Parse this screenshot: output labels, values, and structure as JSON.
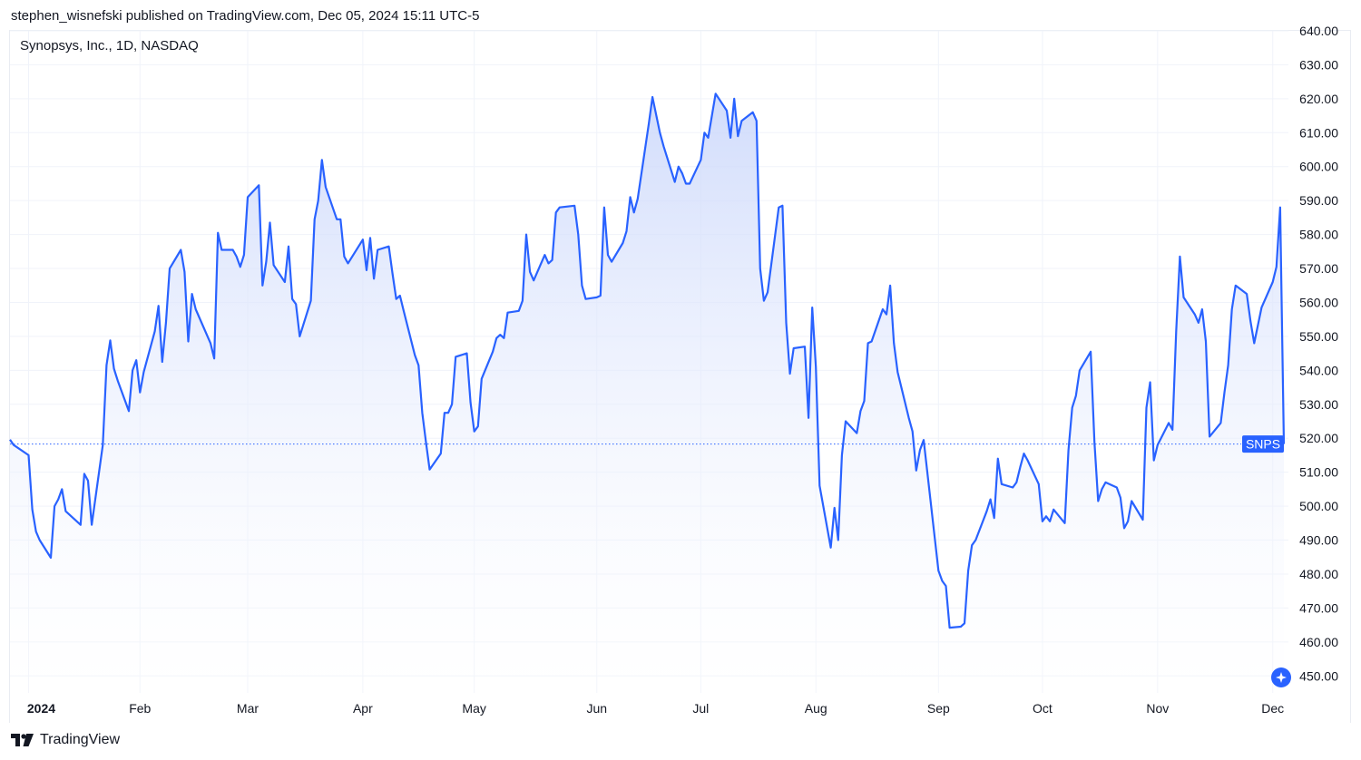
{
  "header": {
    "published_text": "stephen_wisnefski published on TradingView.com, Dec 05, 2024 15:11 UTC-5"
  },
  "chart_title": "Synopsys, Inc., 1D, NASDAQ",
  "footer": {
    "brand": "TradingView",
    "logo_icon": "tradingview-logo-icon"
  },
  "colors": {
    "line": "#2962ff",
    "fill_top": "#c9d6fb",
    "grid": "#f0f3fa",
    "label_bg": "#2962ff"
  },
  "chart_data": {
    "type": "area",
    "title": "Synopsys, Inc., 1D, NASDAQ",
    "symbol": "SNPS",
    "last_value": 518.3,
    "ylim": [
      445,
      640
    ],
    "y_ticks": [
      640,
      630,
      620,
      610,
      600,
      590,
      580,
      570,
      560,
      550,
      540,
      530,
      520,
      510,
      500,
      490,
      480,
      470,
      460,
      450
    ],
    "y_tick_labels": [
      "640.00",
      "630.00",
      "620.00",
      "610.00",
      "600.00",
      "590.00",
      "580.00",
      "570.00",
      "560.00",
      "550.00",
      "540.00",
      "530.00",
      "520.00",
      "510.00",
      "500.00",
      "490.00",
      "480.00",
      "470.00",
      "460.00",
      "450.00"
    ],
    "x_range": [
      "2023-12-28",
      "2024-12-05"
    ],
    "x_ticks": [
      {
        "label": "2024",
        "date": "2024-01-02",
        "bold": true
      },
      {
        "label": "Feb",
        "date": "2024-02-01"
      },
      {
        "label": "Mar",
        "date": "2024-03-01"
      },
      {
        "label": "Apr",
        "date": "2024-04-01"
      },
      {
        "label": "May",
        "date": "2024-05-01"
      },
      {
        "label": "Jun",
        "date": "2024-06-03"
      },
      {
        "label": "Jul",
        "date": "2024-07-01"
      },
      {
        "label": "Aug",
        "date": "2024-08-01"
      },
      {
        "label": "Sep",
        "date": "2024-09-03"
      },
      {
        "label": "Oct",
        "date": "2024-10-01"
      },
      {
        "label": "Nov",
        "date": "2024-11-01"
      },
      {
        "label": "Dec",
        "date": "2024-12-02"
      }
    ],
    "series": [
      {
        "values": [
          [
            "2023-12-28",
            519.6
          ],
          [
            "2023-12-29",
            518.0
          ],
          [
            "2024-01-02",
            515.0
          ],
          [
            "2024-01-03",
            499.0
          ],
          [
            "2024-01-04",
            492.5
          ],
          [
            "2024-01-05",
            490.0
          ],
          [
            "2024-01-08",
            484.8
          ],
          [
            "2024-01-09",
            500.0
          ],
          [
            "2024-01-10",
            502.0
          ],
          [
            "2024-01-11",
            505.0
          ],
          [
            "2024-01-12",
            498.5
          ],
          [
            "2024-01-16",
            494.5
          ],
          [
            "2024-01-17",
            509.5
          ],
          [
            "2024-01-18",
            507.5
          ],
          [
            "2024-01-19",
            494.5
          ],
          [
            "2024-01-22",
            518.0
          ],
          [
            "2024-01-23",
            541.5
          ],
          [
            "2024-01-24",
            548.8
          ],
          [
            "2024-01-25",
            540.5
          ],
          [
            "2024-01-26",
            537.0
          ],
          [
            "2024-01-29",
            528.0
          ],
          [
            "2024-01-30",
            540.0
          ],
          [
            "2024-01-31",
            543.0
          ],
          [
            "2024-02-01",
            533.5
          ],
          [
            "2024-02-02",
            539.5
          ],
          [
            "2024-02-05",
            551.5
          ],
          [
            "2024-02-06",
            559.0
          ],
          [
            "2024-02-07",
            542.5
          ],
          [
            "2024-02-08",
            554.0
          ],
          [
            "2024-02-09",
            570.0
          ],
          [
            "2024-02-12",
            575.5
          ],
          [
            "2024-02-13",
            569.0
          ],
          [
            "2024-02-14",
            548.5
          ],
          [
            "2024-02-15",
            562.5
          ],
          [
            "2024-02-16",
            558.0
          ],
          [
            "2024-02-20",
            548.0
          ],
          [
            "2024-02-21",
            543.5
          ],
          [
            "2024-02-22",
            580.5
          ],
          [
            "2024-02-23",
            575.5
          ],
          [
            "2024-02-26",
            575.5
          ],
          [
            "2024-02-27",
            573.5
          ],
          [
            "2024-02-28",
            570.5
          ],
          [
            "2024-02-29",
            574.0
          ],
          [
            "2024-03-01",
            591.0
          ],
          [
            "2024-03-04",
            594.5
          ],
          [
            "2024-03-05",
            565.0
          ],
          [
            "2024-03-06",
            572.0
          ],
          [
            "2024-03-07",
            583.5
          ],
          [
            "2024-03-08",
            571.0
          ],
          [
            "2024-03-11",
            566.0
          ],
          [
            "2024-03-12",
            576.5
          ],
          [
            "2024-03-13",
            561.0
          ],
          [
            "2024-03-14",
            559.5
          ],
          [
            "2024-03-15",
            550.0
          ],
          [
            "2024-03-18",
            560.5
          ],
          [
            "2024-03-19",
            584.5
          ],
          [
            "2024-03-20",
            590.0
          ],
          [
            "2024-03-21",
            602.0
          ],
          [
            "2024-03-22",
            594.0
          ],
          [
            "2024-03-25",
            584.5
          ],
          [
            "2024-03-26",
            584.5
          ],
          [
            "2024-03-27",
            573.5
          ],
          [
            "2024-03-28",
            571.5
          ],
          [
            "2024-04-01",
            578.5
          ],
          [
            "2024-04-02",
            569.5
          ],
          [
            "2024-04-03",
            579.0
          ],
          [
            "2024-04-04",
            567.0
          ],
          [
            "2024-04-05",
            575.5
          ],
          [
            "2024-04-08",
            576.5
          ],
          [
            "2024-04-09",
            568.5
          ],
          [
            "2024-04-10",
            561.0
          ],
          [
            "2024-04-11",
            562.0
          ],
          [
            "2024-04-12",
            557.5
          ],
          [
            "2024-04-15",
            544.5
          ],
          [
            "2024-04-16",
            541.5
          ],
          [
            "2024-04-17",
            527.5
          ],
          [
            "2024-04-18",
            519.0
          ],
          [
            "2024-04-19",
            510.8
          ],
          [
            "2024-04-22",
            515.5
          ],
          [
            "2024-04-23",
            527.5
          ],
          [
            "2024-04-24",
            527.5
          ],
          [
            "2024-04-25",
            530.0
          ],
          [
            "2024-04-26",
            544.0
          ],
          [
            "2024-04-29",
            545.0
          ],
          [
            "2024-04-30",
            530.5
          ],
          [
            "2024-05-01",
            522.0
          ],
          [
            "2024-05-02",
            523.5
          ],
          [
            "2024-05-03",
            537.5
          ],
          [
            "2024-05-06",
            545.5
          ],
          [
            "2024-05-07",
            549.5
          ],
          [
            "2024-05-08",
            550.5
          ],
          [
            "2024-05-09",
            549.5
          ],
          [
            "2024-05-10",
            557.0
          ],
          [
            "2024-05-13",
            557.5
          ],
          [
            "2024-05-14",
            560.5
          ],
          [
            "2024-05-15",
            580.0
          ],
          [
            "2024-05-16",
            569.0
          ],
          [
            "2024-05-17",
            566.5
          ],
          [
            "2024-05-20",
            574.0
          ],
          [
            "2024-05-21",
            571.5
          ],
          [
            "2024-05-22",
            572.5
          ],
          [
            "2024-05-23",
            586.5
          ],
          [
            "2024-05-24",
            588.0
          ],
          [
            "2024-05-28",
            588.5
          ],
          [
            "2024-05-29",
            580.0
          ],
          [
            "2024-05-30",
            565.0
          ],
          [
            "2024-05-31",
            561.0
          ],
          [
            "2024-06-03",
            561.5
          ],
          [
            "2024-06-04",
            562.0
          ],
          [
            "2024-06-05",
            588.0
          ],
          [
            "2024-06-06",
            574.0
          ],
          [
            "2024-06-07",
            572.0
          ],
          [
            "2024-06-10",
            577.5
          ],
          [
            "2024-06-11",
            581.0
          ],
          [
            "2024-06-12",
            591.0
          ],
          [
            "2024-06-13",
            586.5
          ],
          [
            "2024-06-14",
            590.5
          ],
          [
            "2024-06-17",
            612.5
          ],
          [
            "2024-06-18",
            620.5
          ],
          [
            "2024-06-20",
            610.0
          ],
          [
            "2024-06-21",
            606.0
          ],
          [
            "2024-06-24",
            595.5
          ],
          [
            "2024-06-25",
            600.0
          ],
          [
            "2024-06-26",
            598.0
          ],
          [
            "2024-06-27",
            595.0
          ],
          [
            "2024-06-28",
            595.0
          ],
          [
            "2024-07-01",
            602.0
          ],
          [
            "2024-07-02",
            610.0
          ],
          [
            "2024-07-03",
            608.5
          ],
          [
            "2024-07-05",
            621.5
          ],
          [
            "2024-07-08",
            616.5
          ],
          [
            "2024-07-09",
            608.5
          ],
          [
            "2024-07-10",
            620.0
          ],
          [
            "2024-07-11",
            609.0
          ],
          [
            "2024-07-12",
            613.5
          ],
          [
            "2024-07-15",
            616.0
          ],
          [
            "2024-07-16",
            613.5
          ],
          [
            "2024-07-17",
            570.0
          ],
          [
            "2024-07-18",
            560.5
          ],
          [
            "2024-07-19",
            563.0
          ],
          [
            "2024-07-22",
            588.0
          ],
          [
            "2024-07-23",
            588.5
          ],
          [
            "2024-07-24",
            554.0
          ],
          [
            "2024-07-25",
            539.0
          ],
          [
            "2024-07-26",
            546.5
          ],
          [
            "2024-07-29",
            547.0
          ],
          [
            "2024-07-30",
            526.0
          ],
          [
            "2024-07-31",
            558.5
          ],
          [
            "2024-08-01",
            541.0
          ],
          [
            "2024-08-02",
            506.0
          ],
          [
            "2024-08-05",
            487.8
          ],
          [
            "2024-08-06",
            499.5
          ],
          [
            "2024-08-07",
            490.0
          ],
          [
            "2024-08-08",
            515.0
          ],
          [
            "2024-08-09",
            525.0
          ],
          [
            "2024-08-12",
            521.5
          ],
          [
            "2024-08-13",
            528.0
          ],
          [
            "2024-08-14",
            531.0
          ],
          [
            "2024-08-15",
            548.0
          ],
          [
            "2024-08-16",
            548.5
          ],
          [
            "2024-08-19",
            558.0
          ],
          [
            "2024-08-20",
            556.5
          ],
          [
            "2024-08-21",
            565.0
          ],
          [
            "2024-08-22",
            548.0
          ],
          [
            "2024-08-23",
            539.5
          ],
          [
            "2024-08-26",
            526.0
          ],
          [
            "2024-08-27",
            522.0
          ],
          [
            "2024-08-28",
            510.5
          ],
          [
            "2024-08-29",
            516.5
          ],
          [
            "2024-08-30",
            519.5
          ],
          [
            "2024-09-03",
            481.0
          ],
          [
            "2024-09-04",
            478.0
          ],
          [
            "2024-09-05",
            476.5
          ],
          [
            "2024-09-06",
            464.2
          ],
          [
            "2024-09-09",
            464.5
          ],
          [
            "2024-09-10",
            465.5
          ],
          [
            "2024-09-11",
            481.0
          ],
          [
            "2024-09-12",
            488.5
          ],
          [
            "2024-09-13",
            490.0
          ],
          [
            "2024-09-16",
            498.5
          ],
          [
            "2024-09-17",
            502.0
          ],
          [
            "2024-09-18",
            496.5
          ],
          [
            "2024-09-19",
            514.0
          ],
          [
            "2024-09-20",
            506.5
          ],
          [
            "2024-09-23",
            505.5
          ],
          [
            "2024-09-24",
            507.0
          ],
          [
            "2024-09-25",
            511.5
          ],
          [
            "2024-09-26",
            515.5
          ],
          [
            "2024-09-27",
            513.5
          ],
          [
            "2024-09-30",
            506.5
          ],
          [
            "2024-10-01",
            495.5
          ],
          [
            "2024-10-02",
            497.0
          ],
          [
            "2024-10-03",
            495.5
          ],
          [
            "2024-10-04",
            499.0
          ],
          [
            "2024-10-07",
            495.0
          ],
          [
            "2024-10-08",
            516.5
          ],
          [
            "2024-10-09",
            529.0
          ],
          [
            "2024-10-10",
            532.5
          ],
          [
            "2024-10-11",
            540.0
          ],
          [
            "2024-10-14",
            545.5
          ],
          [
            "2024-10-15",
            519.0
          ],
          [
            "2024-10-16",
            501.5
          ],
          [
            "2024-10-17",
            505.0
          ],
          [
            "2024-10-18",
            507.0
          ],
          [
            "2024-10-21",
            505.5
          ],
          [
            "2024-10-22",
            502.5
          ],
          [
            "2024-10-23",
            493.5
          ],
          [
            "2024-10-24",
            495.5
          ],
          [
            "2024-10-25",
            501.5
          ],
          [
            "2024-10-28",
            496.0
          ],
          [
            "2024-10-29",
            529.0
          ],
          [
            "2024-10-30",
            536.5
          ],
          [
            "2024-10-31",
            513.5
          ],
          [
            "2024-11-01",
            518.0
          ],
          [
            "2024-11-04",
            524.5
          ],
          [
            "2024-11-05",
            522.5
          ],
          [
            "2024-11-06",
            551.5
          ],
          [
            "2024-11-07",
            573.5
          ],
          [
            "2024-11-08",
            561.5
          ],
          [
            "2024-11-11",
            556.5
          ],
          [
            "2024-11-12",
            554.0
          ],
          [
            "2024-11-13",
            558.0
          ],
          [
            "2024-11-14",
            548.5
          ],
          [
            "2024-11-15",
            520.5
          ],
          [
            "2024-11-18",
            524.5
          ],
          [
            "2024-11-19",
            533.5
          ],
          [
            "2024-11-20",
            541.5
          ],
          [
            "2024-11-21",
            558.0
          ],
          [
            "2024-11-22",
            565.0
          ],
          [
            "2024-11-25",
            562.5
          ],
          [
            "2024-11-26",
            554.5
          ],
          [
            "2024-11-27",
            548.0
          ],
          [
            "2024-11-29",
            558.5
          ],
          [
            "2024-12-02",
            566.0
          ],
          [
            "2024-12-03",
            570.5
          ],
          [
            "2024-12-04",
            588.0
          ],
          [
            "2024-12-05",
            518.3
          ]
        ]
      }
    ]
  }
}
